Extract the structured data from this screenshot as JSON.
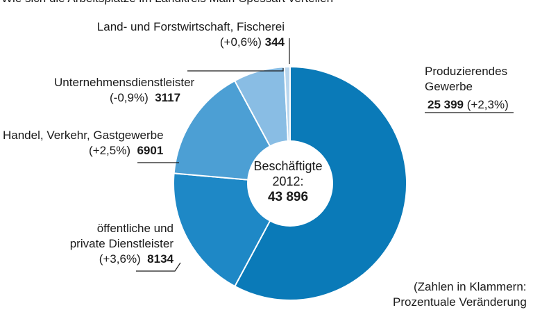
{
  "title": "Wie sich die Arbeitsplätze im Landkreis Main-Spessart verteilen",
  "center": {
    "line1": "Beschäftigte",
    "line2": "2012:",
    "total": "43 896"
  },
  "footnote": {
    "line1": "(Zahlen in Klammern:",
    "line2": "Prozentuale Veränderung"
  },
  "colors": {
    "produzierendes": "#0a7ab8",
    "oeffentliche": "#1e88c6",
    "handel": "#4c9fd4",
    "unternehmens": "#89bde4",
    "land": "#b8d6ee",
    "leader": "#1a1a1a"
  },
  "chart_data": {
    "type": "pie",
    "title": "Wie sich die Arbeitsplätze im Landkreis Main-Spessart verteilen",
    "total": 43896,
    "slices": [
      {
        "name": "Produzierendes Gewerbe",
        "value": 25399,
        "value_label": "25 399",
        "change": "(+2,3%)",
        "color": "#0a7ab8"
      },
      {
        "name": "öffentliche und private Dienstleister",
        "value": 8134,
        "value_label": "8134",
        "change": "(+3,6%)",
        "color": "#1e88c6"
      },
      {
        "name": "Handel, Verkehr, Gastgewerbe",
        "value": 6901,
        "value_label": "6901",
        "change": "(+2,5%)",
        "color": "#4c9fd4"
      },
      {
        "name": "Unternehmensdienstleister",
        "value": 3117,
        "value_label": "3117",
        "change": "(-0,9%)",
        "color": "#89bde4"
      },
      {
        "name": "Land- und Forstwirtschaft, Fischerei",
        "value": 344,
        "value_label": "344",
        "change": "(+0,6%)",
        "color": "#b8d6ee"
      }
    ],
    "labels": {
      "produzierendes": {
        "line1": "Produzierendes",
        "line2": "Gewerbe"
      },
      "oeffentliche": {
        "line1": "öffentliche und",
        "line2": "private Dienstleister"
      }
    }
  }
}
